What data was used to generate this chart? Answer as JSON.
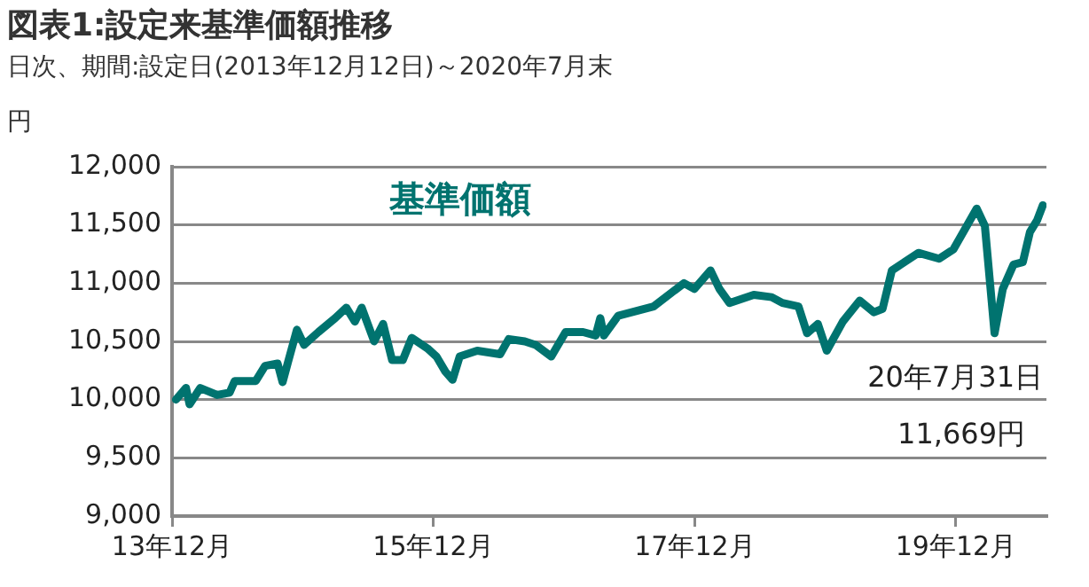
{
  "chart_data": {
    "type": "line",
    "title": "図表1:設定来基準価額推移",
    "subtitle": "日次、期間:設定日(2013年12月12日)～2020年7月末",
    "ylabel": "円",
    "x": [
      "2013-12-12",
      "2014-01-09",
      "2014-01-19",
      "2014-02-18",
      "2014-04-06",
      "2014-05-11",
      "2014-05-25",
      "2014-07-23",
      "2014-08-18",
      "2014-09-22",
      "2014-10-06",
      "2014-10-21",
      "2014-11-15",
      "2014-12-05",
      "2015-01-14",
      "2015-03-02",
      "2015-04-02",
      "2015-04-26",
      "2015-05-15",
      "2015-06-19",
      "2015-07-14",
      "2015-08-08",
      "2015-09-07",
      "2015-10-02",
      "2015-11-15",
      "2015-12-10",
      "2016-01-04",
      "2016-01-24",
      "2016-02-13",
      "2016-04-02",
      "2016-06-05",
      "2016-06-29",
      "2016-08-13",
      "2016-09-12",
      "2016-10-26",
      "2016-12-05",
      "2017-01-23",
      "2017-02-27",
      "2017-03-12",
      "2017-03-22",
      "2017-05-01",
      "2017-08-08",
      "2017-11-01",
      "2017-11-30",
      "2018-01-14",
      "2018-02-08",
      "2018-03-08",
      "2018-05-15",
      "2018-07-04",
      "2018-08-03",
      "2018-09-17",
      "2018-10-11",
      "2018-11-10",
      "2018-12-05",
      "2019-01-19",
      "2019-03-07",
      "2019-04-16",
      "2019-05-10",
      "2019-06-05",
      "2019-08-18",
      "2019-10-15",
      "2019-11-24",
      "2020-01-28",
      "2020-02-20",
      "2020-03-18",
      "2020-04-10",
      "2020-05-10",
      "2020-06-05",
      "2020-06-25",
      "2020-07-15",
      "2020-07-31"
    ],
    "series": [
      {
        "name": "基準価額",
        "color": "#00736f",
        "values": [
          10000,
          10100,
          9960,
          10100,
          10040,
          10060,
          10160,
          10160,
          10290,
          10310,
          10150,
          10320,
          10600,
          10470,
          10580,
          10700,
          10790,
          10670,
          10790,
          10500,
          10650,
          10340,
          10340,
          10530,
          10440,
          10370,
          10240,
          10170,
          10370,
          10420,
          10390,
          10520,
          10500,
          10470,
          10370,
          10580,
          10580,
          10550,
          10700,
          10550,
          10720,
          10800,
          11000,
          10950,
          11110,
          10950,
          10830,
          10900,
          10880,
          10830,
          10800,
          10570,
          10650,
          10420,
          10670,
          10850,
          10750,
          10780,
          11110,
          11260,
          11210,
          11290,
          11640,
          11490,
          10570,
          10950,
          11160,
          11180,
          11440,
          11540,
          11669
        ]
      }
    ],
    "annotations": [
      "20年7月31日",
      "11,669円"
    ],
    "xlim": [
      "2013-12-01",
      "2020-08-10"
    ],
    "xticks": [
      {
        "value": "2013-12-01",
        "label": "13年12月"
      },
      {
        "value": "2015-12-01",
        "label": "15年12月"
      },
      {
        "value": "2017-12-01",
        "label": "17年12月"
      },
      {
        "value": "2019-12-01",
        "label": "19年12月"
      }
    ],
    "ylim": [
      9000,
      12000
    ],
    "yticks": [
      {
        "value": 9000,
        "label": "9,000"
      },
      {
        "value": 9500,
        "label": "9,500"
      },
      {
        "value": 10000,
        "label": "10,000"
      },
      {
        "value": 10500,
        "label": "10,500"
      },
      {
        "value": 11000,
        "label": "11,000"
      },
      {
        "value": 11500,
        "label": "11,500"
      },
      {
        "value": 12000,
        "label": "12,000"
      }
    ],
    "grid": "y",
    "legend": false,
    "marker": "none",
    "line_style": "solid"
  }
}
